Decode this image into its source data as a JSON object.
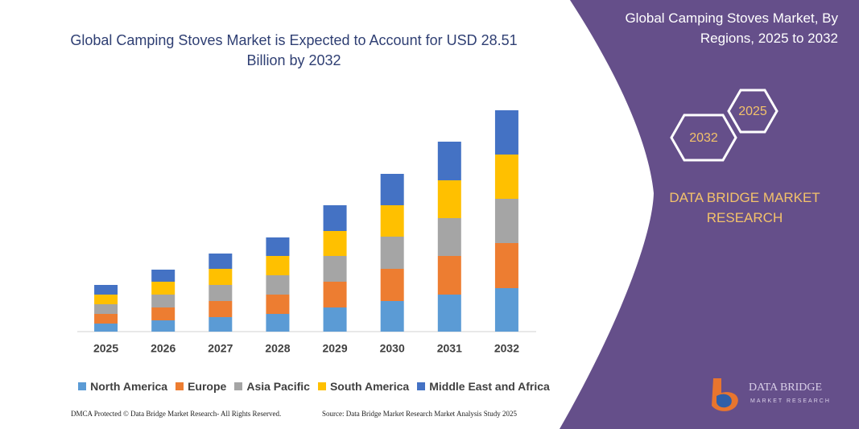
{
  "chart_data": {
    "type": "bar",
    "stacked": true,
    "title": "Global Camping Stoves Market is Expected to Account for USD 28.51 Billion by 2032",
    "categories": [
      "2025",
      "2026",
      "2027",
      "2028",
      "2029",
      "2030",
      "2031",
      "2032"
    ],
    "series": [
      {
        "name": "North America",
        "color": "#5b9bd5",
        "values": [
          10,
          14,
          18,
          22,
          30,
          38,
          46,
          54
        ]
      },
      {
        "name": "Europe",
        "color": "#ed7d31",
        "values": [
          12,
          16,
          20,
          24,
          32,
          40,
          48,
          56
        ]
      },
      {
        "name": "Asia Pacific",
        "color": "#a5a5a5",
        "values": [
          12,
          16,
          20,
          24,
          32,
          40,
          47,
          55
        ]
      },
      {
        "name": "South America",
        "color": "#ffc000",
        "values": [
          12,
          16,
          20,
          24,
          31,
          39,
          47,
          55
        ]
      },
      {
        "name": "Middle East and Africa",
        "color": "#4472c4",
        "values": [
          12,
          15,
          19,
          23,
          32,
          39,
          48,
          55
        ]
      }
    ],
    "ylim": [
      0,
      280
    ]
  },
  "panel": {
    "title": "Global Camping Stoves Market, By Regions, 2025 to 2032",
    "hex_years": [
      "2025",
      "2032"
    ],
    "brand": "DATA BRIDGE MARKET RESEARCH",
    "logo_name": "DATA BRIDGE",
    "logo_tagline": "MARKET RESEARCH"
  },
  "footer": {
    "copyright": "DMCA Protected © Data Bridge Market Research- All Rights Reserved.",
    "source": "Source: Data Bridge Market Research Market Analysis Study 2025"
  }
}
